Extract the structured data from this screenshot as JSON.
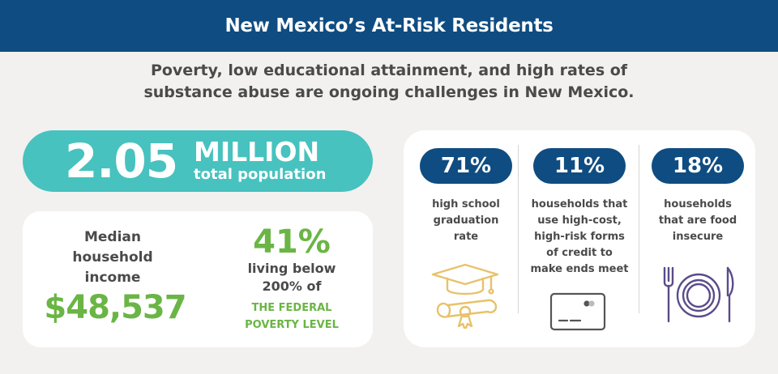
{
  "header": {
    "title": "New Mexico’s At-Risk Residents"
  },
  "subtitle": {
    "line1": "Poverty, low educational attainment, and high rates of",
    "line2": "substance abuse are ongoing challenges in New Mexico."
  },
  "population": {
    "value": "2.05",
    "unit": "MILLION",
    "label": "total population"
  },
  "income": {
    "label_lines": [
      "Median",
      "household",
      "income"
    ],
    "value": "$48,537"
  },
  "poverty": {
    "percent": "41%",
    "text_lines": [
      "living below",
      "200% of"
    ],
    "caps_lines": [
      "THE FEDERAL",
      "POVERTY LEVEL"
    ]
  },
  "stats": [
    {
      "percent": "71%",
      "label_lines": [
        "high school",
        "graduation",
        "rate"
      ],
      "icon": "graduation-cap-diploma-icon"
    },
    {
      "percent": "11%",
      "label_lines": [
        "households that",
        "use high-cost,",
        "high-risk forms",
        "of credit to",
        "make ends meet"
      ],
      "icon": "credit-card-icon"
    },
    {
      "percent": "18%",
      "label_lines": [
        "households",
        "that are food",
        "insecure"
      ],
      "icon": "plate-fork-knife-icon"
    }
  ],
  "colors": {
    "navy": "#0f4c81",
    "teal": "#47c2bf",
    "green": "#6ab545",
    "gold": "#e8c26a",
    "gray_text": "#4a4a4a",
    "icon_gray": "#555555",
    "icon_purple": "#5b4b8a",
    "background": "#f2f1ef"
  }
}
